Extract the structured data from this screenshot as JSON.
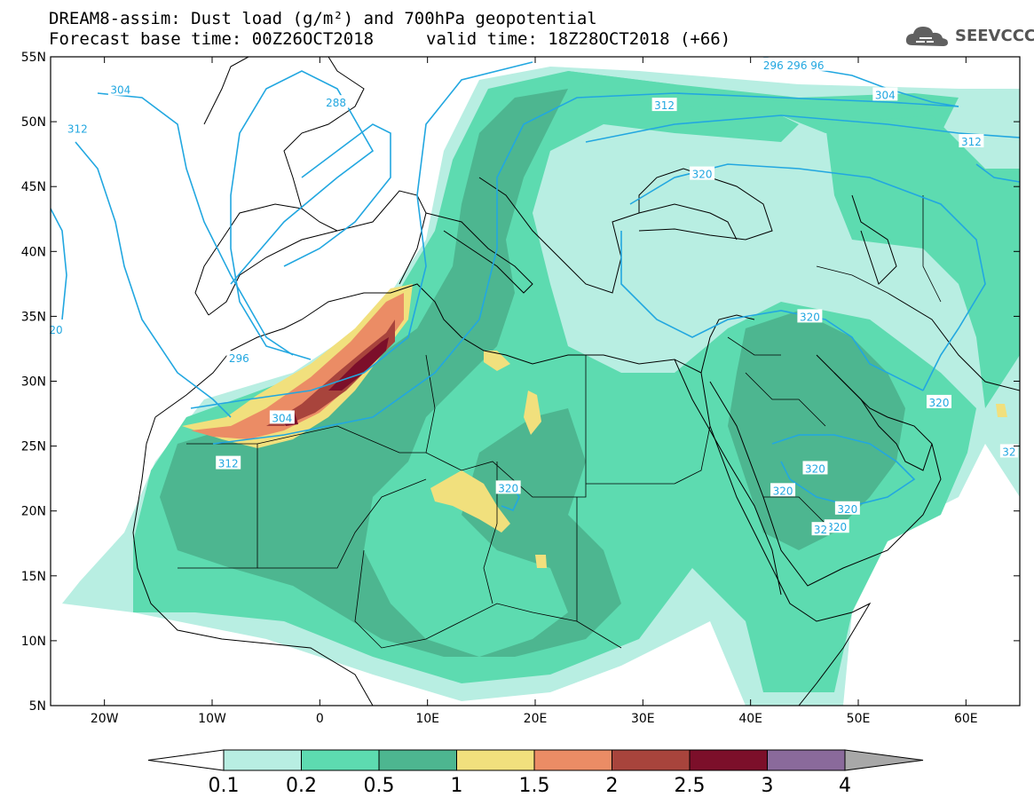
{
  "header": {
    "title_line1": "DREAM8-assim: Dust load (g/m²) and 700hPa geopotential",
    "base_time": "Forecast base time: 00Z26OCT2018",
    "valid_time": "valid time: 18Z28OCT2018 (+66)",
    "logo_text": "SEEVCCC"
  },
  "axes": {
    "lat_labels": [
      "55N",
      "50N",
      "45N",
      "40N",
      "35N",
      "30N",
      "25N",
      "20N",
      "15N",
      "10N",
      "5N"
    ],
    "lon_labels": [
      "20W",
      "10W",
      "0",
      "10E",
      "20E",
      "30E",
      "40E",
      "50E",
      "60E"
    ]
  },
  "contour_labels": [
    {
      "text": "304",
      "lon": -18.5,
      "lat": 52.5
    },
    {
      "text": "312",
      "lon": -22.5,
      "lat": 49.5
    },
    {
      "text": "288",
      "lon": 1.5,
      "lat": 51.5
    },
    {
      "text": "296 296 96",
      "lon": 44,
      "lat": 54.4
    },
    {
      "text": "312",
      "lon": 32,
      "lat": 51.3
    },
    {
      "text": "304",
      "lon": 52.5,
      "lat": 52.1
    },
    {
      "text": "312",
      "lon": 60.5,
      "lat": 48.5
    },
    {
      "text": "320",
      "lon": 35.5,
      "lat": 46
    },
    {
      "text": "20",
      "lon": -24.5,
      "lat": 34
    },
    {
      "text": "296",
      "lon": -7.5,
      "lat": 31.8
    },
    {
      "text": "304",
      "lon": -3.5,
      "lat": 27.2
    },
    {
      "text": "312",
      "lon": -8.5,
      "lat": 23.7
    },
    {
      "text": "320",
      "lon": 17.5,
      "lat": 21.8
    },
    {
      "text": "320",
      "lon": 45.5,
      "lat": 35
    },
    {
      "text": "320",
      "lon": 57.5,
      "lat": 28.4
    },
    {
      "text": "320",
      "lon": 46,
      "lat": 23.3
    },
    {
      "text": "320",
      "lon": 43,
      "lat": 21.6
    },
    {
      "text": "320",
      "lon": 49,
      "lat": 20.2
    },
    {
      "text": "320",
      "lon": 48,
      "lat": 18.8
    },
    {
      "text": "32",
      "lon": 46.5,
      "lat": 18.6
    },
    {
      "text": "32",
      "lon": 64,
      "lat": 24.6
    }
  ],
  "colorbar": {
    "labels": [
      "0.1",
      "0.2",
      "0.5",
      "1",
      "1.5",
      "2",
      "2.5",
      "3",
      "4"
    ],
    "colors": [
      "#b8eee2",
      "#5ddbb0",
      "#4db690",
      "#f1e07d",
      "#eb8c65",
      "#a8443c",
      "#7c0f2a",
      "#8a6a9b"
    ],
    "over_color": "#a8a8a8",
    "under_color": "#ffffff"
  },
  "colors": {
    "contour": "#22a7e0",
    "coast": "#000000"
  }
}
